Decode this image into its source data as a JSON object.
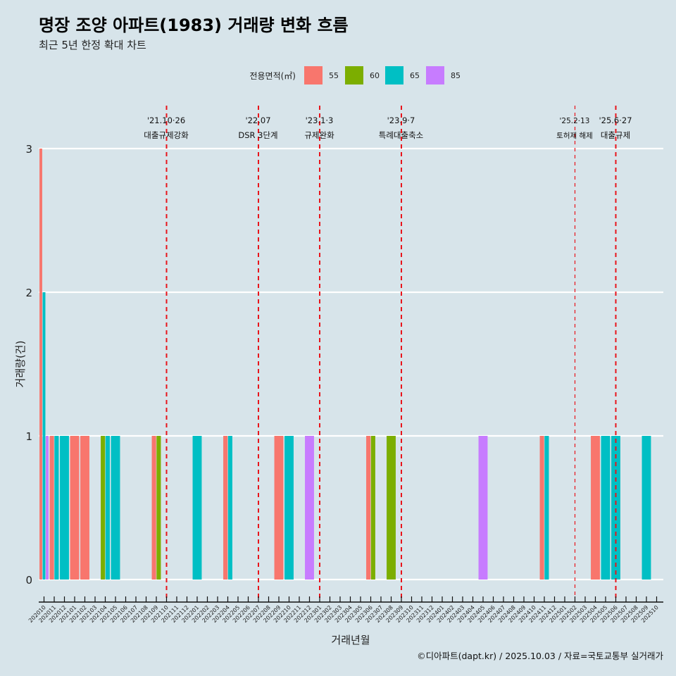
{
  "chart_data": {
    "type": "bar",
    "title": "명장 조양 아파트(1983) 거래량 변화 흐름",
    "subtitle": "최근 5년 한정 확대 차트",
    "xlabel": "거래년월",
    "ylabel": "거래량(건)",
    "ylim": [
      0,
      3
    ],
    "yticks": [
      "0",
      "1",
      "2",
      "3"
    ],
    "grid": true,
    "legend": {
      "title": "전용면적(㎡)",
      "position": "top",
      "entries": [
        {
          "name": "55",
          "color": "#F8766D"
        },
        {
          "name": "60",
          "color": "#7CAE00"
        },
        {
          "name": "65",
          "color": "#00BFC4"
        },
        {
          "name": "85",
          "color": "#C77CFF"
        }
      ]
    },
    "categories": [
      "202010",
      "202011",
      "202012",
      "202101",
      "202102",
      "202103",
      "202104",
      "202105",
      "202106",
      "202107",
      "202108",
      "202109",
      "202110",
      "202111",
      "202112",
      "202201",
      "202202",
      "202203",
      "202204",
      "202205",
      "202206",
      "202207",
      "202208",
      "202209",
      "202210",
      "202211",
      "202212",
      "202301",
      "202302",
      "202303",
      "202304",
      "202305",
      "202306",
      "202307",
      "202308",
      "202309",
      "202310",
      "202311",
      "202312",
      "202401",
      "202402",
      "202403",
      "202404",
      "202405",
      "202406",
      "202407",
      "202408",
      "202409",
      "202410",
      "202411",
      "202412",
      "202501",
      "202502",
      "202503",
      "202504",
      "202505",
      "202506",
      "202507",
      "202508",
      "202509",
      "202510"
    ],
    "bars": [
      {
        "month": "202010",
        "area": "55",
        "value": 3
      },
      {
        "month": "202010",
        "area": "65",
        "value": 2
      },
      {
        "month": "202010",
        "area": "85",
        "value": 1
      },
      {
        "month": "202011",
        "area": "55",
        "value": 1
      },
      {
        "month": "202011",
        "area": "65",
        "value": 1
      },
      {
        "month": "202012",
        "area": "65",
        "value": 1
      },
      {
        "month": "202101",
        "area": "55",
        "value": 1
      },
      {
        "month": "202102",
        "area": "55",
        "value": 1
      },
      {
        "month": "202104",
        "area": "60",
        "value": 1
      },
      {
        "month": "202104",
        "area": "65",
        "value": 1
      },
      {
        "month": "202105",
        "area": "65",
        "value": 1
      },
      {
        "month": "202109",
        "area": "55",
        "value": 1
      },
      {
        "month": "202109",
        "area": "60",
        "value": 1
      },
      {
        "month": "202201",
        "area": "65",
        "value": 1
      },
      {
        "month": "202204",
        "area": "55",
        "value": 1
      },
      {
        "month": "202204",
        "area": "65",
        "value": 1
      },
      {
        "month": "202209",
        "area": "55",
        "value": 1
      },
      {
        "month": "202210",
        "area": "65",
        "value": 1
      },
      {
        "month": "202212",
        "area": "85",
        "value": 1
      },
      {
        "month": "202306",
        "area": "55",
        "value": 1
      },
      {
        "month": "202306",
        "area": "60",
        "value": 1
      },
      {
        "month": "202308",
        "area": "60",
        "value": 1
      },
      {
        "month": "202405",
        "area": "85",
        "value": 1
      },
      {
        "month": "202411",
        "area": "55",
        "value": 1
      },
      {
        "month": "202411",
        "area": "65",
        "value": 1
      },
      {
        "month": "202504",
        "area": "55",
        "value": 1
      },
      {
        "month": "202505",
        "area": "65",
        "value": 1
      },
      {
        "month": "202506",
        "area": "65",
        "value": 1
      },
      {
        "month": "202509",
        "area": "65",
        "value": 1
      }
    ],
    "annotations": [
      {
        "month": "202110",
        "date": "'21.10·26",
        "label": "대출규제강화",
        "style": "thick"
      },
      {
        "month": "202207",
        "date": "'22.07",
        "label": "DSR 3단계",
        "style": "thick"
      },
      {
        "month": "202301",
        "date": "'23.1·3",
        "label": "규제완화",
        "style": "thick"
      },
      {
        "month": "202309",
        "date": "'23.9·7",
        "label": "특례대출축소",
        "style": "thick"
      },
      {
        "month": "202502",
        "date": "'25.2·13",
        "label": "토허제 해제",
        "style": "thin"
      },
      {
        "month": "202506",
        "date": "'25.6·27",
        "label": "대출규제",
        "style": "thick"
      }
    ],
    "annotation_color": "#E8141B",
    "caption": "©디아파트(dapt.kr) / 2025.10.03 / 자료=국토교통부 실거래가"
  }
}
